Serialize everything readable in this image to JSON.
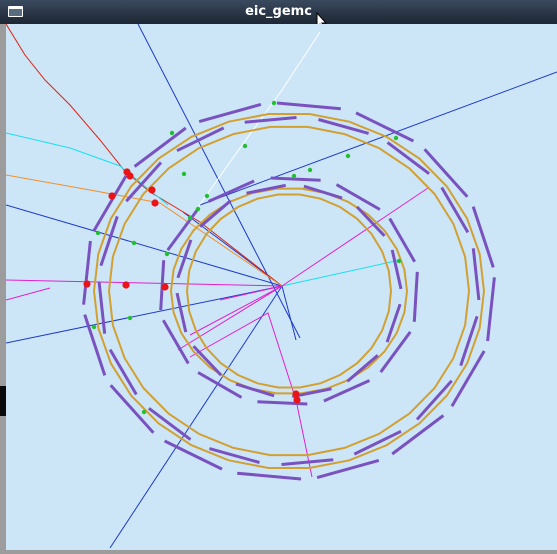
{
  "window": {
    "title": "eic_gemc",
    "icon": "window-menu-icon",
    "background_color": "#cce6f8"
  },
  "colors": {
    "detector_strip": "#7a52c0",
    "ring": "#d2a030",
    "hit": "#e8141a",
    "crossing": "#22c030",
    "track_blue": "#1e3ac8",
    "track_magenta": "#e020d0",
    "track_red": "#e02010",
    "track_cyan": "#18e0f0",
    "track_orange": "#f0902a",
    "track_white": "#ffffff"
  }
}
